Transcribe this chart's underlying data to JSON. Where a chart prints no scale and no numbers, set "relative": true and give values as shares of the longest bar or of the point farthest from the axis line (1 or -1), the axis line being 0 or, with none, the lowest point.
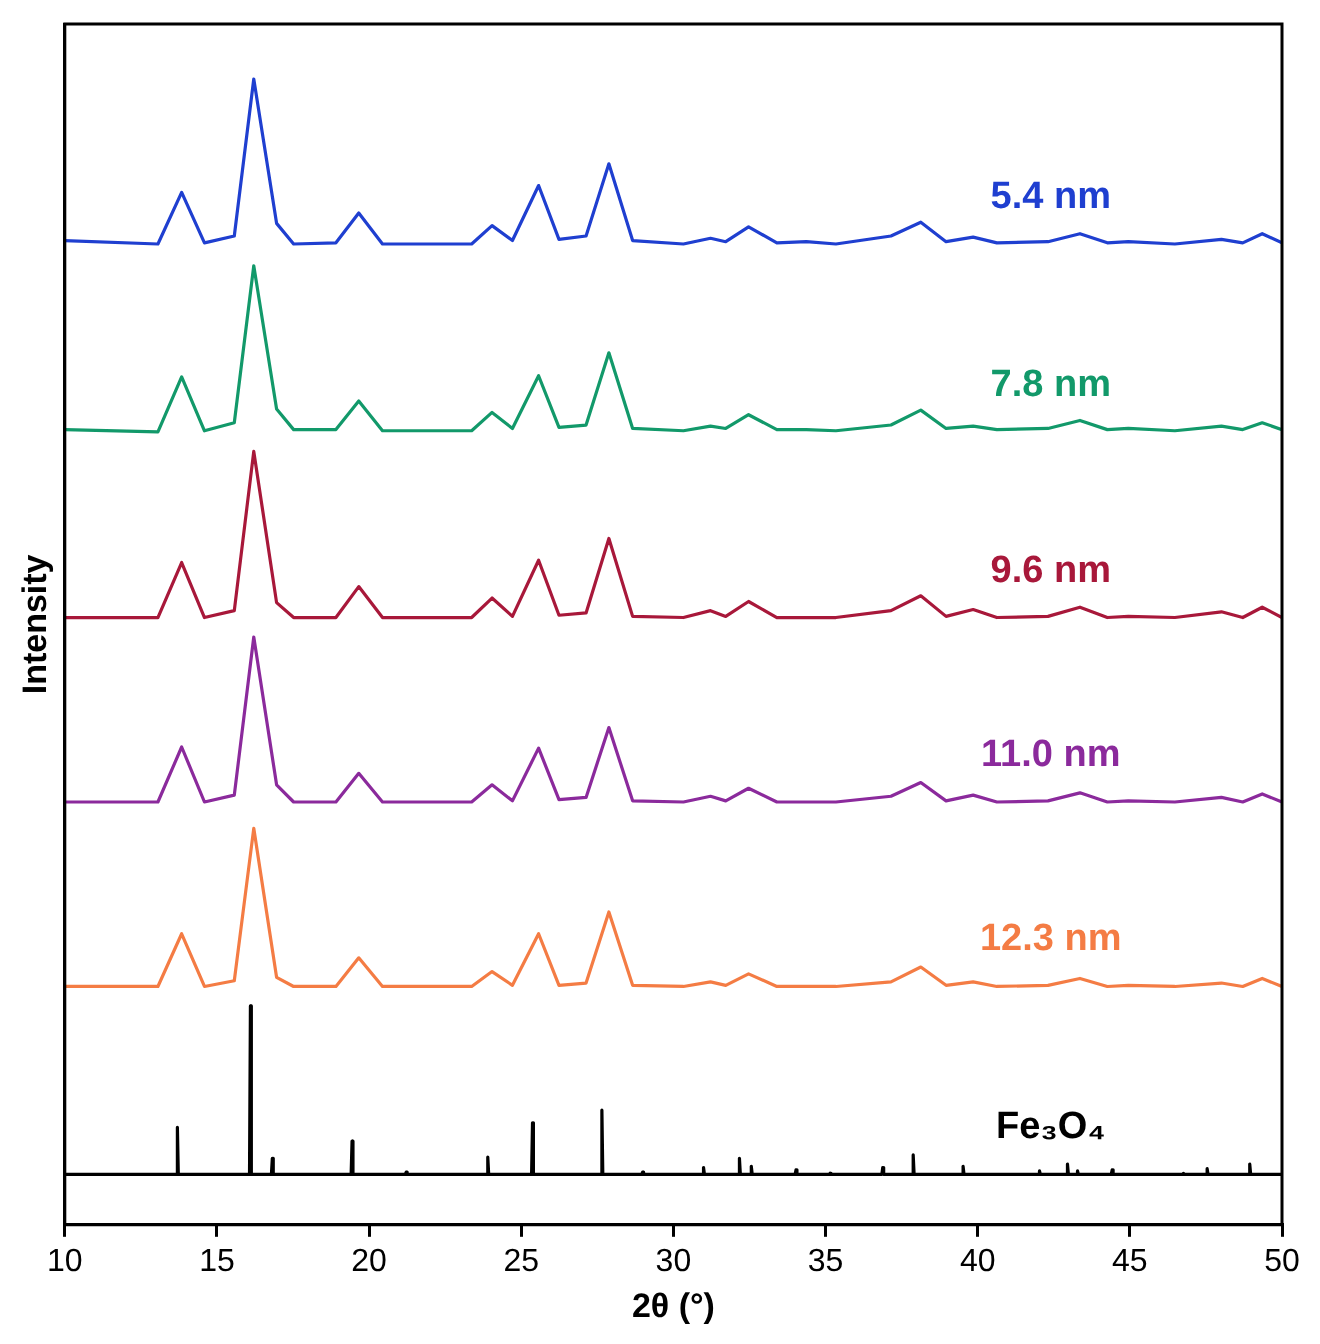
{
  "chart_data": {
    "type": "line",
    "xlabel": "2θ (°)",
    "ylabel": "Intensity",
    "relative": true,
    "legend": false,
    "grid": false,
    "marker": "none",
    "line_style": "solid",
    "xlim": [
      10,
      50
    ],
    "xticks": [
      10,
      15,
      20,
      25,
      30,
      35,
      40,
      45,
      50
    ],
    "x": [
      10,
      13.06,
      13.84,
      14.59,
      15.57,
      16.21,
      16.96,
      17.52,
      18.91,
      19.66,
      20.44,
      23.37,
      24.04,
      24.71,
      25.57,
      26.24,
      27.13,
      27.88,
      28.66,
      30.33,
      31.22,
      31.72,
      32.47,
      33.4,
      34.37,
      35.34,
      37.15,
      38.13,
      38.96,
      39.85,
      40.63,
      42.31,
      43.36,
      44.26,
      44.95,
      46.48,
      48.01,
      48.71,
      49.35,
      50
    ],
    "series": [
      {
        "name": "5.4 nm",
        "color": "#1f3fd0",
        "values": [
          0.859,
          0.856,
          0.901,
          0.857,
          0.863,
          1.0,
          0.874,
          0.856,
          0.857,
          0.883,
          0.856,
          0.856,
          0.872,
          0.859,
          0.907,
          0.86,
          0.863,
          0.926,
          0.859,
          0.856,
          0.861,
          0.858,
          0.871,
          0.857,
          0.858,
          0.856,
          0.863,
          0.875,
          0.858,
          0.862,
          0.857,
          0.858,
          0.865,
          0.857,
          0.858,
          0.856,
          0.86,
          0.857,
          0.865,
          0.857
        ]
      },
      {
        "name": "7.8 nm",
        "color": "#12996a",
        "values": [
          0.694,
          0.692,
          0.74,
          0.693,
          0.7,
          0.837,
          0.712,
          0.694,
          0.694,
          0.719,
          0.693,
          0.693,
          0.709,
          0.695,
          0.741,
          0.696,
          0.698,
          0.761,
          0.695,
          0.693,
          0.697,
          0.695,
          0.707,
          0.694,
          0.694,
          0.693,
          0.698,
          0.711,
          0.695,
          0.697,
          0.694,
          0.695,
          0.702,
          0.694,
          0.695,
          0.693,
          0.697,
          0.694,
          0.7,
          0.694
        ]
      },
      {
        "name": "9.6 nm",
        "color": "#a8183a",
        "values": [
          0.53,
          0.53,
          0.578,
          0.53,
          0.536,
          0.675,
          0.543,
          0.53,
          0.53,
          0.557,
          0.53,
          0.53,
          0.547,
          0.531,
          0.58,
          0.532,
          0.534,
          0.599,
          0.531,
          0.53,
          0.536,
          0.531,
          0.544,
          0.53,
          0.53,
          0.53,
          0.536,
          0.549,
          0.531,
          0.537,
          0.53,
          0.531,
          0.539,
          0.53,
          0.531,
          0.53,
          0.535,
          0.53,
          0.539,
          0.53
        ]
      },
      {
        "name": "11.0 nm",
        "color": "#8b2a9c",
        "values": [
          0.369,
          0.369,
          0.417,
          0.369,
          0.375,
          0.513,
          0.384,
          0.369,
          0.369,
          0.394,
          0.369,
          0.369,
          0.384,
          0.37,
          0.416,
          0.371,
          0.373,
          0.434,
          0.37,
          0.369,
          0.374,
          0.37,
          0.381,
          0.369,
          0.369,
          0.369,
          0.374,
          0.386,
          0.37,
          0.375,
          0.369,
          0.37,
          0.377,
          0.369,
          0.37,
          0.369,
          0.373,
          0.369,
          0.376,
          0.369
        ]
      },
      {
        "name": "12.3 nm",
        "color": "#f47c44",
        "values": [
          0.208,
          0.208,
          0.254,
          0.208,
          0.213,
          0.346,
          0.216,
          0.208,
          0.208,
          0.233,
          0.208,
          0.208,
          0.221,
          0.209,
          0.254,
          0.209,
          0.211,
          0.273,
          0.209,
          0.208,
          0.212,
          0.209,
          0.219,
          0.208,
          0.208,
          0.208,
          0.212,
          0.225,
          0.209,
          0.212,
          0.208,
          0.209,
          0.215,
          0.208,
          0.209,
          0.208,
          0.211,
          0.208,
          0.215,
          0.208
        ]
      },
      {
        "name": "Fe₃O₄",
        "color": "#000000",
        "x": [
          10,
          13.67,
          13.7,
          13.73,
          16.07,
          16.1,
          16.13,
          16.79,
          16.82,
          16.85,
          19.41,
          19.44,
          19.47,
          21.19,
          21.22,
          21.25,
          23.87,
          23.9,
          23.93,
          25.34,
          25.37,
          25.4,
          27.62,
          27.65,
          27.68,
          28.96,
          28.99,
          29.02,
          30.96,
          30.99,
          31.02,
          32.14,
          32.17,
          32.2,
          32.53,
          32.56,
          32.59,
          34,
          34.03,
          34.06,
          35.12,
          35.15,
          35.18,
          36.85,
          36.88,
          36.91,
          37.85,
          37.88,
          37.91,
          39.49,
          39.52,
          39.55,
          42,
          42.03,
          42.06,
          42.92,
          42.95,
          42.98,
          43.25,
          43.28,
          43.31,
          44.39,
          44.42,
          44.45,
          46.73,
          46.76,
          46.79,
          47.51,
          47.54,
          47.57,
          48.91,
          48.94,
          48.97,
          50
        ],
        "values": [
          0.044,
          0.044,
          0.085,
          0.044,
          0.044,
          0.191,
          0.044,
          0.044,
          0.058,
          0.044,
          0.044,
          0.073,
          0.044,
          0.044,
          0.046,
          0.044,
          0.044,
          0.059,
          0.044,
          0.044,
          0.089,
          0.044,
          0.044,
          0.1,
          0.044,
          0.044,
          0.046,
          0.044,
          0.044,
          0.05,
          0.044,
          0.044,
          0.058,
          0.044,
          0.044,
          0.051,
          0.044,
          0.044,
          0.048,
          0.044,
          0.044,
          0.045,
          0.044,
          0.044,
          0.05,
          0.044,
          0.044,
          0.061,
          0.044,
          0.044,
          0.051,
          0.044,
          0.044,
          0.047,
          0.044,
          0.044,
          0.053,
          0.044,
          0.044,
          0.047,
          0.044,
          0.044,
          0.048,
          0.044,
          0.044,
          0.045,
          0.044,
          0.044,
          0.049,
          0.044,
          0.044,
          0.053,
          0.044,
          0.044
        ]
      }
    ]
  }
}
